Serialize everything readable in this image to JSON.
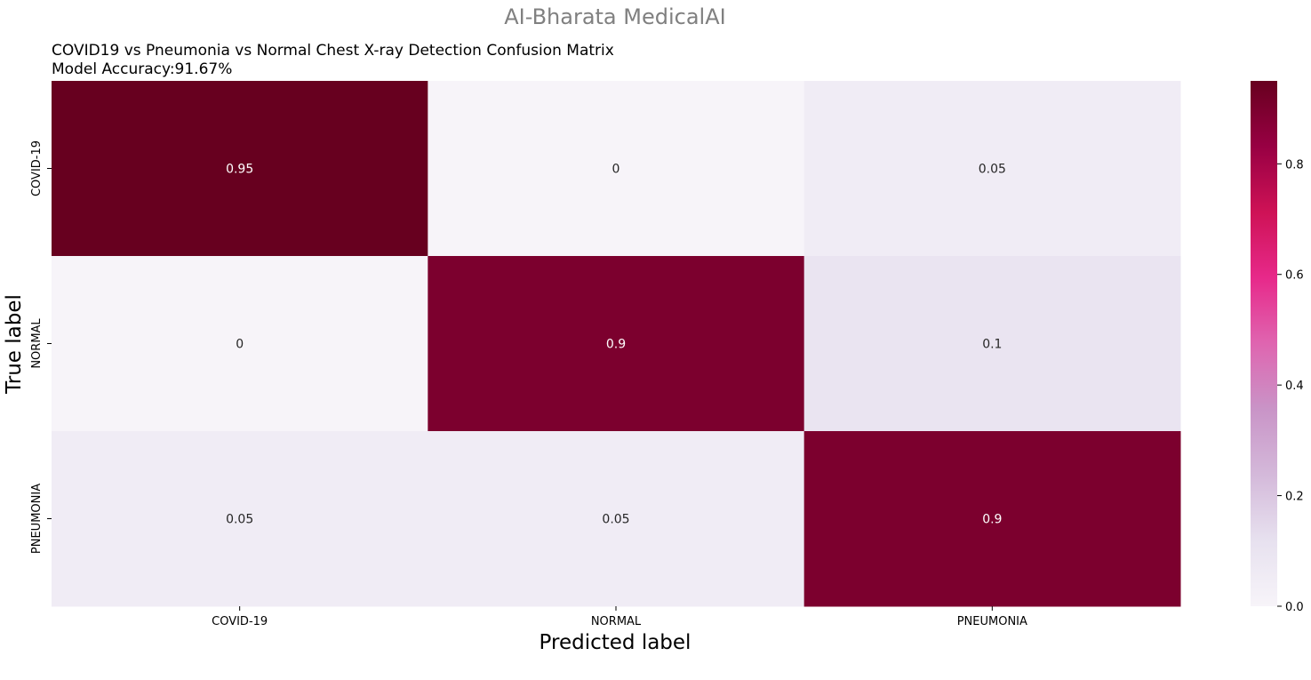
{
  "chart_data": {
    "type": "heatmap",
    "suptitle": "AI-Bharata MedicalAI",
    "title_line1": "COVID19 vs Pneumonia vs Normal Chest X-ray Detection Confusion Matrix",
    "title_line2": "Model Accuracy:91.67%",
    "xlabel": "Predicted label",
    "ylabel": "True label",
    "x_categories": [
      "COVID-19",
      "NORMAL",
      "PNEUMONIA"
    ],
    "y_categories": [
      "COVID-19",
      "NORMAL",
      "PNEUMONIA"
    ],
    "values": [
      [
        0.95,
        0,
        0.05
      ],
      [
        0,
        0.9,
        0.1
      ],
      [
        0.05,
        0.05,
        0.9
      ]
    ],
    "cell_labels": [
      [
        "0.95",
        "0",
        "0.05"
      ],
      [
        "0",
        "0.9",
        "0.1"
      ],
      [
        "0.05",
        "0.05",
        "0.9"
      ]
    ],
    "colormap": "PuRd",
    "colorbar": {
      "range": [
        0,
        0.95
      ],
      "ticks": [
        0.0,
        0.2,
        0.4,
        0.6,
        0.8
      ],
      "tick_labels": [
        "0.0",
        "0.2",
        "0.4",
        "0.6",
        "0.8"
      ]
    },
    "colors": {
      "suptitle": "#808080",
      "text_dark": "#262626",
      "text_light": "#ffffff",
      "stops": [
        "#f7f4f9",
        "#e7e1ef",
        "#d4b9da",
        "#c994c7",
        "#df65b0",
        "#e7298a",
        "#ce1256",
        "#980043",
        "#67001f"
      ]
    }
  }
}
